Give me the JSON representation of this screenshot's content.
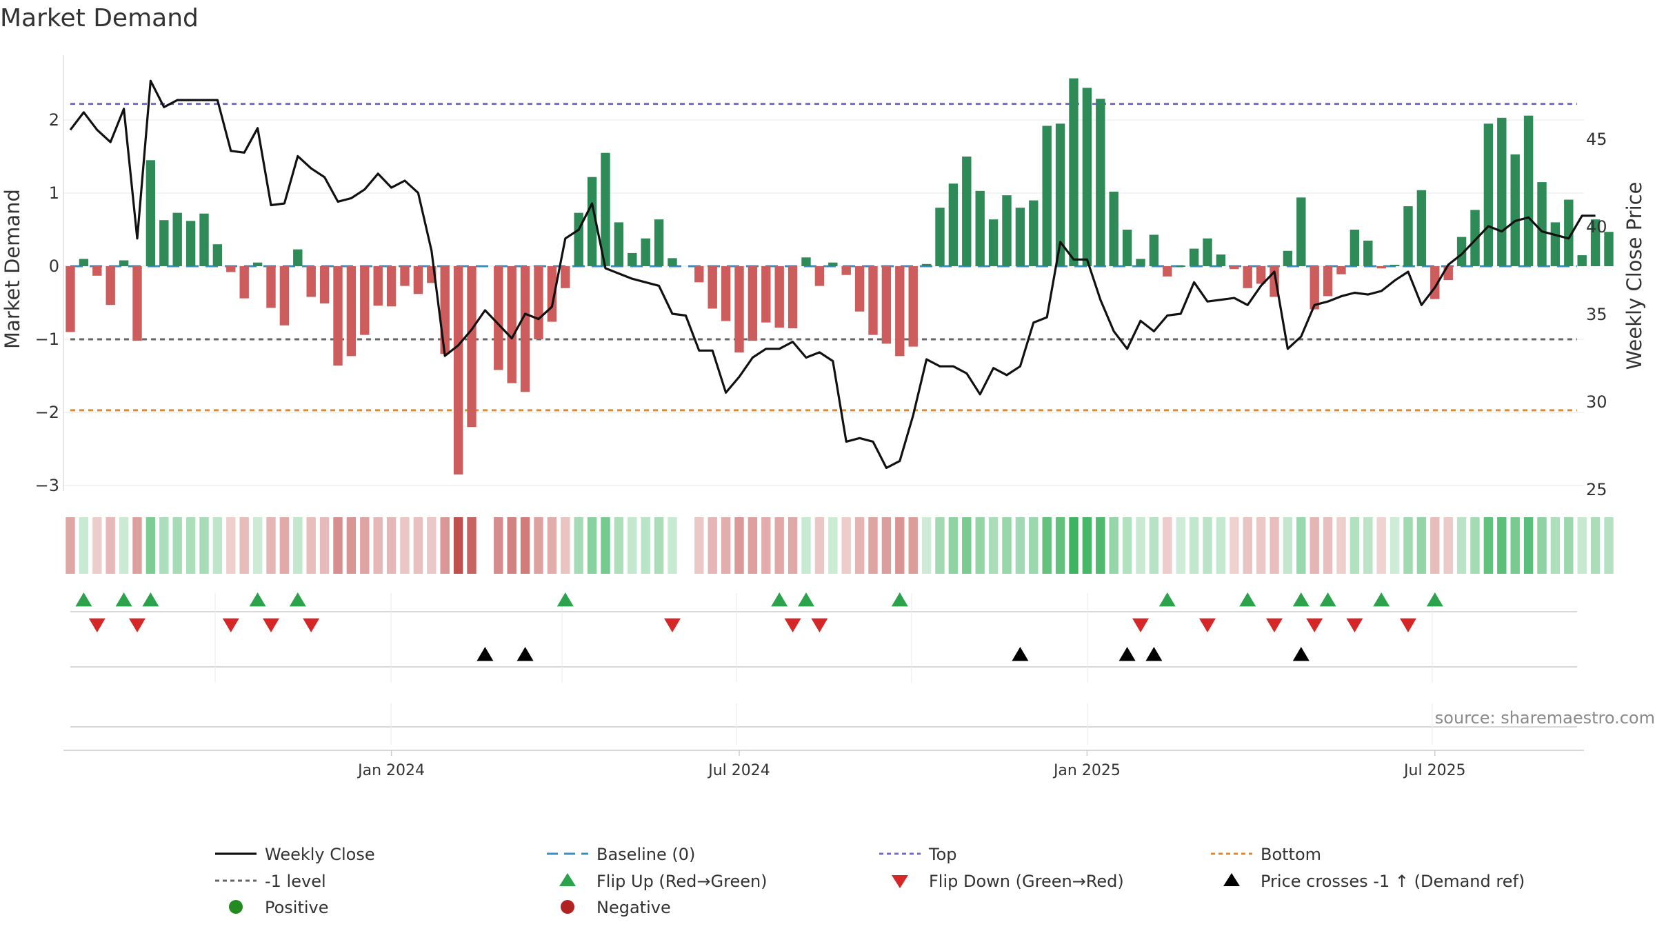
{
  "chart_data": {
    "type": "bar",
    "title": "Market Demand",
    "ylabel": "Market Demand",
    "y2label": "Weekly Close Price",
    "ylim": [
      -3.3,
      2.85
    ],
    "y2lim": [
      24.5,
      50.5
    ],
    "y_ticks": [
      2,
      1,
      0,
      -1,
      -2,
      -3
    ],
    "y_tick_labels": [
      "2",
      "1",
      "0",
      "−1",
      "−2",
      "−3"
    ],
    "y2_ticks": [
      45,
      40,
      35,
      30,
      25
    ],
    "x_ticks": [
      {
        "index": 24,
        "label": "Jan 2024"
      },
      {
        "index": 50,
        "label": "Jul 2024"
      },
      {
        "index": 76,
        "label": "Jan 2025"
      },
      {
        "index": 102,
        "label": "Jul 2025"
      }
    ],
    "reference_lines": [
      {
        "name": "Top",
        "value": 2.22,
        "color": "#7b68c8",
        "dash": "7,6"
      },
      {
        "name": "-1 level",
        "value": -1.0,
        "color": "#666666",
        "dash": "7,6"
      },
      {
        "name": "Bottom",
        "value": -1.97,
        "color": "#e08a2e",
        "dash": "7,6"
      },
      {
        "name": "Baseline (0)",
        "value": 0,
        "color": "#3a8fc0",
        "dash": "18,10"
      }
    ],
    "demand": [
      -0.9,
      0.1,
      -0.13,
      -0.53,
      0.08,
      -1.02,
      1.45,
      0.63,
      0.73,
      0.62,
      0.72,
      0.3,
      -0.08,
      -0.44,
      0.05,
      -0.57,
      -0.81,
      0.23,
      -0.42,
      -0.51,
      -1.36,
      -1.23,
      -0.94,
      -0.54,
      -0.55,
      -0.27,
      -0.38,
      -0.23,
      -1.2,
      -2.85,
      -2.2,
      0,
      -1.42,
      -1.6,
      -1.72,
      -1.0,
      -0.76,
      -0.3,
      0.73,
      1.22,
      1.55,
      0.6,
      0.18,
      0.38,
      0.64,
      0.11,
      0,
      -0.22,
      -0.58,
      -0.75,
      -1.18,
      -1.02,
      -0.77,
      -0.84,
      -0.85,
      0.12,
      -0.27,
      0.05,
      -0.12,
      -0.62,
      -0.94,
      -1.06,
      -1.23,
      -1.1,
      0.03,
      0.8,
      1.13,
      1.5,
      1.03,
      0.64,
      0.97,
      0.8,
      0.9,
      1.92,
      1.95,
      2.57,
      2.44,
      2.29,
      1.02,
      0.5,
      0.1,
      0.43,
      -0.14,
      0.01,
      0.24,
      0.38,
      0.16,
      -0.04,
      -0.3,
      -0.24,
      -0.42,
      0.21,
      0.94,
      -0.59,
      -0.41,
      -0.11,
      0.5,
      0.35,
      -0.03,
      0.02,
      0.82,
      1.04,
      -0.45,
      -0.19,
      0.4,
      0.77,
      1.95,
      2.03,
      1.53,
      2.06,
      1.15,
      0.6,
      0.91,
      0.15,
      0.64,
      0.47
    ],
    "close": [
      45.5,
      46.5,
      45.5,
      44.8,
      46.7,
      39.3,
      48.3,
      46.8,
      47.2,
      47.2,
      47.2,
      47.2,
      44.3,
      44.2,
      45.6,
      41.2,
      41.3,
      44.0,
      43.3,
      42.8,
      41.4,
      41.6,
      42.1,
      43.0,
      42.2,
      42.6,
      41.9,
      38.6,
      32.6,
      33.2,
      34.1,
      35.2,
      34.4,
      33.6,
      35.0,
      34.7,
      35.4,
      39.3,
      39.8,
      41.3,
      37.6,
      37.3,
      37.0,
      36.8,
      36.6,
      35.0,
      34.9,
      32.9,
      32.9,
      30.5,
      31.4,
      32.5,
      33.0,
      33.0,
      33.4,
      32.5,
      32.8,
      32.3,
      27.7,
      27.9,
      27.7,
      26.2,
      26.6,
      29.2,
      32.4,
      32.0,
      32.0,
      31.6,
      30.4,
      31.9,
      31.5,
      32.0,
      34.5,
      34.8,
      39.1,
      38.1,
      38.1,
      35.8,
      34.0,
      33.0,
      34.6,
      34.0,
      34.9,
      35.0,
      36.8,
      35.7,
      35.8,
      35.9,
      35.5,
      36.6,
      37.4,
      33.0,
      33.7,
      35.5,
      35.7,
      36.0,
      36.2,
      36.1,
      36.3,
      36.9,
      37.4,
      35.5,
      36.5,
      37.8,
      38.4,
      39.2,
      40.0,
      39.7,
      40.3,
      40.5,
      39.7,
      39.5,
      39.3,
      40.6,
      40.6
    ],
    "flip_up": [
      1,
      4,
      6,
      14,
      17,
      37,
      53,
      55,
      62,
      82,
      88,
      92,
      94,
      98,
      102
    ],
    "flip_down": [
      2,
      5,
      12,
      15,
      18,
      45,
      54,
      56,
      80,
      85,
      90,
      93,
      96,
      100
    ],
    "price_crosses": [
      31,
      34,
      71,
      79,
      81,
      92
    ],
    "legend": [
      {
        "label": "Weekly Close",
        "kind": "line",
        "color": "#111111"
      },
      {
        "label": "Baseline (0)",
        "kind": "dash",
        "color": "#3a8fc0"
      },
      {
        "label": "Top",
        "kind": "dot",
        "color": "#7b68c8"
      },
      {
        "label": "Bottom",
        "kind": "dot",
        "color": "#e08a2e"
      },
      {
        "label": "-1 level",
        "kind": "dot",
        "color": "#666666"
      },
      {
        "label": "Flip Up (Red→Green)",
        "kind": "up",
        "color": "#2ca24c"
      },
      {
        "label": "Flip Down (Green→Red)",
        "kind": "down",
        "color": "#d62728"
      },
      {
        "label": "Price crosses -1 ↑ (Demand ref)",
        "kind": "up",
        "color": "#000000"
      },
      {
        "label": "Positive",
        "kind": "circle",
        "color": "#228b22"
      },
      {
        "label": "Negative",
        "kind": "circle",
        "color": "#b22222"
      }
    ],
    "colors": {
      "positive_bar": "#2e8b57",
      "negative_bar": "#cd5c5c",
      "line": "#111111"
    }
  },
  "source": "source: sharemaestro.com"
}
